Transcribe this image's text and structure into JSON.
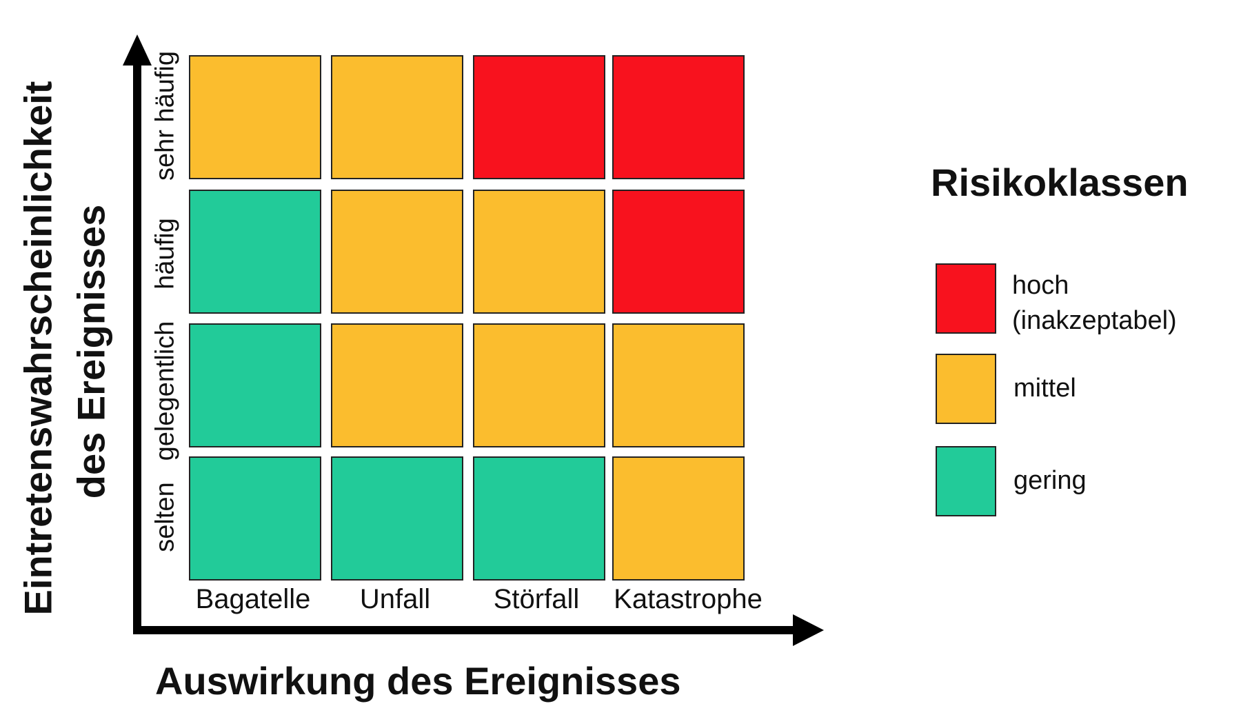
{
  "matrix": {
    "x_axis": {
      "title": "Auswirkung des Ereignisses",
      "categories": [
        "Bagatelle",
        "Unfall",
        "Störfall",
        "Katastrophe"
      ]
    },
    "y_axis": {
      "title_line1": "Eintretenswahrscheinlichkeit",
      "title_line2": "des Ereignisses",
      "categories_top_to_bottom": [
        "sehr häufig",
        "häufig",
        "gelegentlich",
        "selten"
      ]
    },
    "grid_top_to_bottom": [
      [
        "mittel",
        "mittel",
        "hoch",
        "hoch"
      ],
      [
        "gering",
        "mittel",
        "mittel",
        "hoch"
      ],
      [
        "gering",
        "mittel",
        "mittel",
        "mittel"
      ],
      [
        "gering",
        "gering",
        "gering",
        "mittel"
      ]
    ]
  },
  "legend": {
    "title": "Risikoklassen",
    "items": [
      {
        "key": "hoch",
        "line1": "hoch",
        "line2": "(inakzeptabel)",
        "color": "#f8121e"
      },
      {
        "key": "mittel",
        "line1": "mittel",
        "line2": "",
        "color": "#fbbd2e"
      },
      {
        "key": "gering",
        "line1": "gering",
        "line2": "",
        "color": "#22cb99"
      }
    ]
  },
  "colors": {
    "hoch": "#f8121e",
    "mittel": "#fbbd2e",
    "gering": "#22cb99",
    "axis": "#000000"
  }
}
